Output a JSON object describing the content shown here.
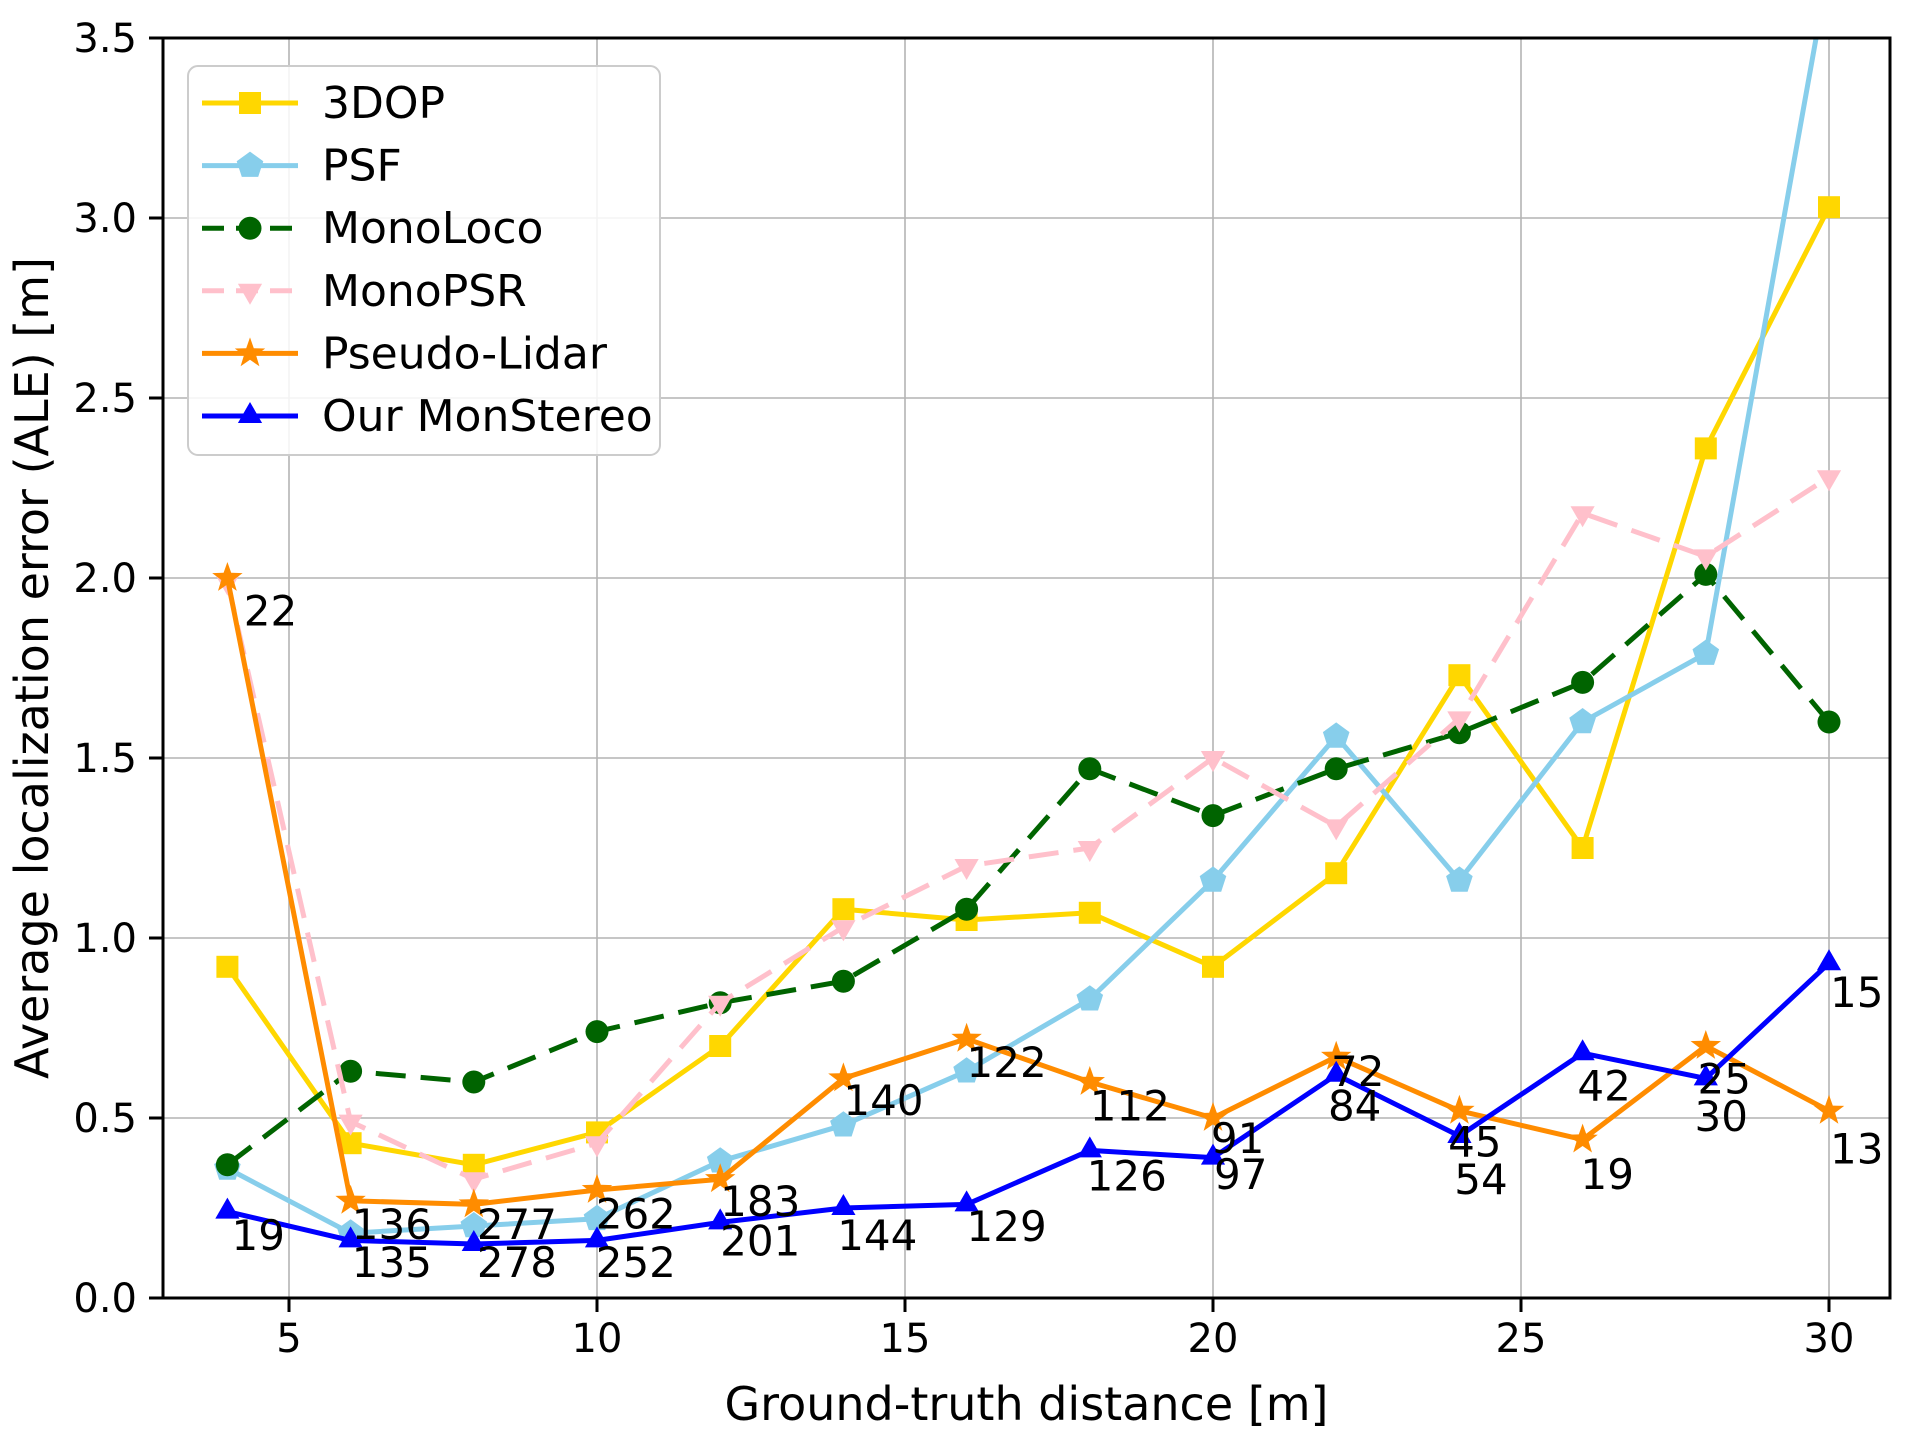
{
  "chart_data": {
    "type": "line",
    "title": "",
    "xlabel": "Ground-truth distance [m]",
    "ylabel": "Average localization error (ALE) [m]",
    "x": [
      4,
      6,
      8,
      10,
      12,
      14,
      16,
      18,
      20,
      22,
      24,
      26,
      28,
      30
    ],
    "xlim": [
      2.95,
      31.0
    ],
    "ylim": [
      0,
      3.5
    ],
    "grid": true,
    "legend_position": "upper-left",
    "xticks": {
      "values": [
        5,
        10,
        15,
        20,
        25,
        30
      ],
      "labels": [
        "5",
        "10",
        "15",
        "20",
        "25",
        "30"
      ]
    },
    "yticks": {
      "values": [
        0.0,
        0.5,
        1.0,
        1.5,
        2.0,
        2.5,
        3.0,
        3.5
      ],
      "labels": [
        "0.0",
        "0.5",
        "1.0",
        "1.5",
        "2.0",
        "2.5",
        "3.0",
        "3.5"
      ]
    },
    "series": [
      {
        "name": "3DOP",
        "color": "#FFD700",
        "marker": "square",
        "line": "solid",
        "values": [
          0.92,
          0.43,
          0.37,
          0.46,
          0.7,
          1.08,
          1.05,
          1.07,
          0.92,
          1.18,
          1.73,
          1.25,
          2.36,
          3.03
        ]
      },
      {
        "name": "PSF",
        "color": "#87CEEB",
        "marker": "pentagon",
        "line": "solid",
        "values": [
          0.36,
          0.18,
          0.2,
          0.22,
          0.38,
          0.48,
          0.63,
          0.83,
          1.16,
          1.56,
          1.16,
          1.6,
          1.79,
          3.7
        ]
      },
      {
        "name": "MonoLoco",
        "color": "#006400",
        "marker": "circle",
        "line": "dashed",
        "values": [
          0.37,
          0.63,
          0.6,
          0.74,
          0.82,
          0.88,
          1.08,
          1.47,
          1.34,
          1.47,
          1.57,
          1.71,
          2.01,
          1.6
        ]
      },
      {
        "name": "MonoPSR",
        "color": "#FFC0CB",
        "marker": "triangle-down",
        "line": "dashed",
        "values": [
          1.99,
          0.49,
          0.33,
          0.43,
          0.82,
          1.03,
          1.2,
          1.25,
          1.5,
          1.31,
          1.61,
          2.18,
          2.06,
          2.28
        ]
      },
      {
        "name": "Pseudo-Lidar",
        "color": "#FF8C00",
        "marker": "star",
        "line": "solid",
        "values": [
          2.0,
          0.27,
          0.26,
          0.3,
          0.33,
          0.61,
          0.72,
          0.6,
          0.5,
          0.67,
          0.52,
          0.44,
          0.7,
          0.52
        ]
      },
      {
        "name": "Our MonStereo",
        "color": "#0000FF",
        "marker": "triangle-up",
        "line": "solid",
        "values": [
          0.24,
          0.16,
          0.15,
          0.16,
          0.21,
          0.25,
          0.26,
          0.41,
          0.39,
          0.62,
          0.45,
          0.68,
          0.61,
          0.93
        ]
      }
    ],
    "annotations": [
      {
        "text": "22",
        "x": 4.7,
        "y": 1.91
      },
      {
        "text": "19",
        "x": 4.5,
        "y": 0.175
      },
      {
        "text": "136",
        "x": 6.67,
        "y": 0.205
      },
      {
        "text": "135",
        "x": 6.67,
        "y": 0.1
      },
      {
        "text": "277",
        "x": 8.7,
        "y": 0.205
      },
      {
        "text": "278",
        "x": 8.7,
        "y": 0.1
      },
      {
        "text": "262",
        "x": 10.63,
        "y": 0.235
      },
      {
        "text": "252",
        "x": 10.63,
        "y": 0.1
      },
      {
        "text": "183",
        "x": 12.65,
        "y": 0.27
      },
      {
        "text": "201",
        "x": 12.65,
        "y": 0.16
      },
      {
        "text": "140",
        "x": 14.65,
        "y": 0.55
      },
      {
        "text": "144",
        "x": 14.55,
        "y": 0.175
      },
      {
        "text": "122",
        "x": 16.65,
        "y": 0.655
      },
      {
        "text": "129",
        "x": 16.65,
        "y": 0.2
      },
      {
        "text": "112",
        "x": 18.65,
        "y": 0.535
      },
      {
        "text": "126",
        "x": 18.6,
        "y": 0.34
      },
      {
        "text": "91",
        "x": 20.4,
        "y": 0.445
      },
      {
        "text": "97",
        "x": 20.45,
        "y": 0.345
      },
      {
        "text": "72",
        "x": 22.35,
        "y": 0.63
      },
      {
        "text": "84",
        "x": 22.3,
        "y": 0.535
      },
      {
        "text": "45",
        "x": 24.25,
        "y": 0.435
      },
      {
        "text": "54",
        "x": 24.35,
        "y": 0.33
      },
      {
        "text": "42",
        "x": 26.35,
        "y": 0.59
      },
      {
        "text": "19",
        "x": 26.4,
        "y": 0.345
      },
      {
        "text": "25",
        "x": 28.3,
        "y": 0.61
      },
      {
        "text": "30",
        "x": 28.25,
        "y": 0.505
      },
      {
        "text": "15",
        "x": 30.45,
        "y": 0.85
      },
      {
        "text": "13",
        "x": 30.45,
        "y": 0.415
      }
    ],
    "style": {
      "grid_color": "#b4b4b4",
      "spine_color": "#000000",
      "text_color": "#000000",
      "background": "#ffffff",
      "legend_border": "#cccccc"
    }
  }
}
